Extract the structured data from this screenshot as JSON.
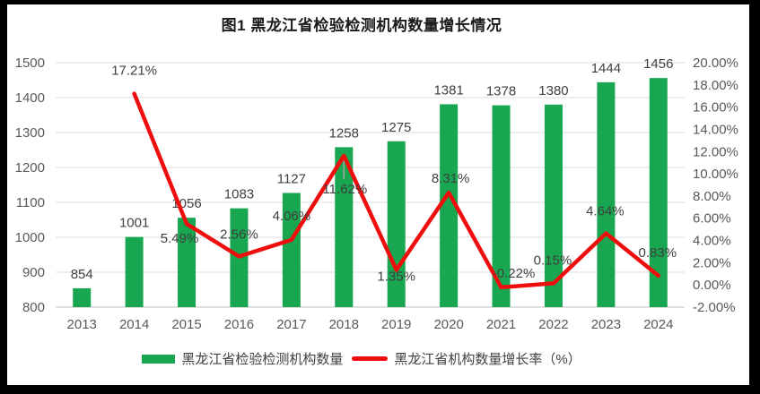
{
  "title": "图1 黑龙江省检验检测机构数量增长情况",
  "colors": {
    "bar": "#18a750",
    "line": "#ee0e0e",
    "grid": "#dcdcdc",
    "axis_line": "#bfbfbf",
    "tick_label": "#595959",
    "data_label": "#3f3f3f",
    "leader_line": "#a6a6a6",
    "frame": "#000000",
    "chart_background": "#ffffff"
  },
  "legend": {
    "items": [
      {
        "type": "bar",
        "label": "黑龙江省检验检测机构数量",
        "color": "#18a750"
      },
      {
        "type": "line",
        "label": "黑龙江省机构数量增长率（%）",
        "color": "#ee0e0e"
      }
    ],
    "position": "bottom"
  },
  "chart_data": {
    "type": "bar",
    "subtype": "combo-bar-line",
    "title": "图1 黑龙江省检验检测机构数量增长情况",
    "categories": [
      "2013",
      "2014",
      "2015",
      "2016",
      "2017",
      "2018",
      "2019",
      "2020",
      "2021",
      "2022",
      "2023",
      "2024"
    ],
    "series": [
      {
        "name": "黑龙江省检验检测机构数量",
        "type": "bar",
        "axis": "left",
        "values": [
          854,
          1001,
          1056,
          1083,
          1127,
          1258,
          1275,
          1381,
          1378,
          1380,
          1444,
          1456
        ],
        "labels": [
          "854",
          "1001",
          "1056",
          "1083",
          "1127",
          "1258",
          "1275",
          "1381",
          "1378",
          "1380",
          "1444",
          "1456"
        ]
      },
      {
        "name": "黑龙江省机构数量增长率（%）",
        "type": "line",
        "axis": "right",
        "values": [
          null,
          17.21,
          5.49,
          2.56,
          4.06,
          11.62,
          1.35,
          8.31,
          -0.22,
          0.15,
          4.64,
          0.83
        ],
        "labels": [
          null,
          "17.21%",
          "5.49%",
          "2.56%",
          "4.06%",
          "11.62%",
          "1.35%",
          "8.31%",
          "-0.22%",
          "0.15%",
          "4.64%",
          "0.83%"
        ]
      }
    ],
    "left_axis": {
      "min": 800,
      "max": 1500,
      "step": 100,
      "ticks": [
        "800",
        "900",
        "1000",
        "1100",
        "1200",
        "1300",
        "1400",
        "1500"
      ]
    },
    "right_axis": {
      "min": -2,
      "max": 20,
      "step": 2,
      "ticks": [
        "-2.00%",
        "0.00%",
        "2.00%",
        "4.00%",
        "6.00%",
        "8.00%",
        "10.00%",
        "12.00%",
        "14.00%",
        "16.00%",
        "18.00%",
        "20.00%"
      ]
    },
    "grid": true,
    "xlabel": "",
    "ylabel": ""
  }
}
